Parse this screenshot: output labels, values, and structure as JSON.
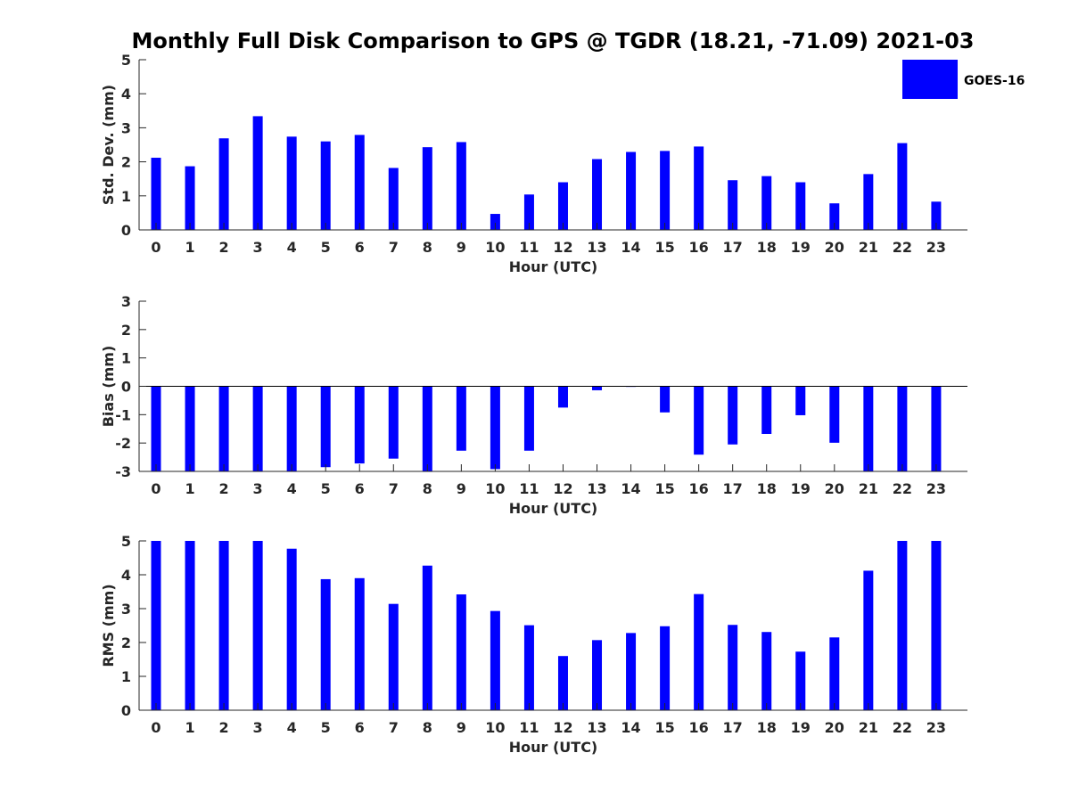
{
  "title": "Monthly Full Disk Comparison to GPS @ TGDR (18.21, -71.09) 2021-03",
  "legend": {
    "label": "GOES-16",
    "color": "#0000ff",
    "position": "top-right"
  },
  "chart_data": [
    {
      "type": "bar",
      "ylabel": "Std. Dev. (mm)",
      "xlabel": "Hour (UTC)",
      "ylim": [
        0,
        5
      ],
      "yticks": [
        0,
        1,
        2,
        3,
        4,
        5
      ],
      "categories": [
        0,
        1,
        2,
        3,
        4,
        5,
        6,
        7,
        8,
        9,
        10,
        11,
        12,
        13,
        14,
        15,
        16,
        17,
        18,
        19,
        20,
        21,
        22,
        23
      ],
      "series": [
        {
          "name": "GOES-16",
          "color": "#0000ff",
          "values": [
            2.12,
            1.87,
            2.69,
            3.34,
            2.74,
            2.6,
            2.79,
            1.82,
            2.43,
            2.58,
            0.47,
            1.04,
            1.4,
            2.08,
            2.29,
            2.32,
            2.45,
            1.46,
            1.58,
            1.4,
            0.78,
            1.64,
            2.55,
            0.83
          ]
        }
      ]
    },
    {
      "type": "bar",
      "ylabel": "Bias (mm)",
      "xlabel": "Hour (UTC)",
      "ylim": [
        -3,
        3
      ],
      "yticks": [
        -3,
        -2,
        -1,
        0,
        1,
        2,
        3
      ],
      "categories": [
        0,
        1,
        2,
        3,
        4,
        5,
        6,
        7,
        8,
        9,
        10,
        11,
        12,
        13,
        14,
        15,
        16,
        17,
        18,
        19,
        20,
        21,
        22,
        23
      ],
      "series": [
        {
          "name": "GOES-16",
          "color": "#0000ff",
          "values": [
            -3.0,
            -3.0,
            -3.0,
            -3.0,
            -3.0,
            -2.85,
            -2.72,
            -2.55,
            -3.0,
            -2.27,
            -2.92,
            -2.27,
            -0.75,
            -0.14,
            -0.02,
            -0.92,
            -2.41,
            -2.05,
            -1.68,
            -1.02,
            -1.99,
            -3.0,
            -3.0,
            -3.0
          ]
        }
      ]
    },
    {
      "type": "bar",
      "ylabel": "RMS (mm)",
      "xlabel": "Hour (UTC)",
      "ylim": [
        0,
        5
      ],
      "yticks": [
        0,
        1,
        2,
        3,
        4,
        5
      ],
      "categories": [
        0,
        1,
        2,
        3,
        4,
        5,
        6,
        7,
        8,
        9,
        10,
        11,
        12,
        13,
        14,
        15,
        16,
        17,
        18,
        19,
        20,
        21,
        22,
        23
      ],
      "series": [
        {
          "name": "GOES-16",
          "color": "#0000ff",
          "values": [
            5.0,
            5.0,
            5.0,
            5.0,
            4.77,
            3.87,
            3.9,
            3.14,
            4.27,
            3.42,
            2.93,
            2.51,
            1.6,
            2.07,
            2.28,
            2.48,
            3.43,
            2.52,
            2.31,
            1.73,
            2.15,
            4.12,
            5.0,
            5.0
          ]
        }
      ]
    }
  ]
}
